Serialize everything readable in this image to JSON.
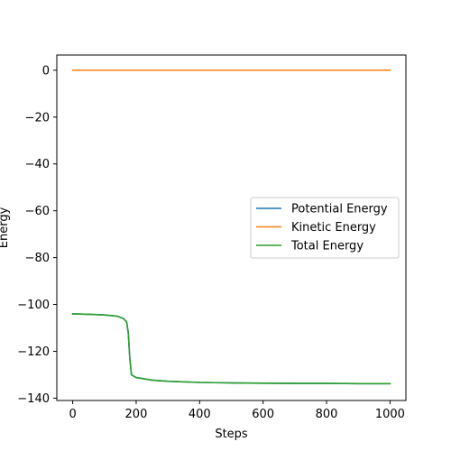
{
  "chart_data": {
    "type": "line",
    "title": "",
    "xlabel": "Steps",
    "ylabel": "Energy",
    "xlim": [
      -50,
      1050
    ],
    "ylim": [
      -141,
      6.5
    ],
    "xticks": [
      0,
      200,
      400,
      600,
      800,
      1000
    ],
    "yticks": [
      0,
      -20,
      -40,
      -60,
      -80,
      -100,
      -120,
      -140
    ],
    "grid": false,
    "legend_position": "center-right",
    "series": [
      {
        "name": "Potential Energy",
        "color": "#1f77b4",
        "x": [
          0,
          50,
          100,
          140,
          160,
          170,
          175,
          180,
          185,
          200,
          250,
          300,
          400,
          500,
          600,
          700,
          800,
          900,
          1000
        ],
        "y": [
          -104.0,
          -104.2,
          -104.5,
          -105.0,
          -106.0,
          -107.5,
          -112.0,
          -123.0,
          -130.0,
          -131.2,
          -132.3,
          -132.8,
          -133.3,
          -133.5,
          -133.6,
          -133.7,
          -133.7,
          -133.8,
          -133.8
        ]
      },
      {
        "name": "Kinetic Energy",
        "color": "#ff7f0e",
        "x": [
          0,
          1000
        ],
        "y": [
          0,
          0
        ]
      },
      {
        "name": "Total Energy",
        "color": "#2ca02c",
        "x": [
          0,
          50,
          100,
          140,
          160,
          170,
          175,
          180,
          185,
          200,
          250,
          300,
          400,
          500,
          600,
          700,
          800,
          900,
          1000
        ],
        "y": [
          -104.0,
          -104.2,
          -104.5,
          -105.0,
          -106.0,
          -107.5,
          -112.0,
          -123.0,
          -130.0,
          -131.2,
          -132.3,
          -132.8,
          -133.3,
          -133.5,
          -133.6,
          -133.7,
          -133.7,
          -133.8,
          -133.8
        ]
      }
    ]
  }
}
